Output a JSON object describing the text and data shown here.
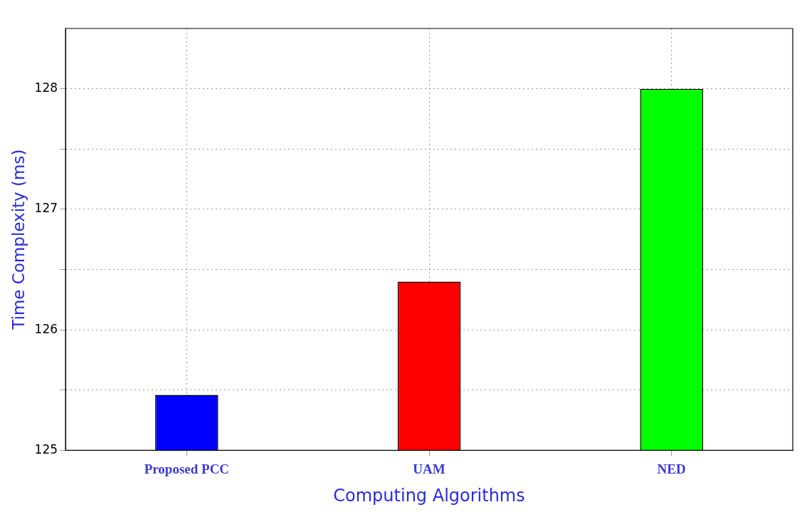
{
  "chart_data": {
    "type": "bar",
    "xlabel": "Computing Algorithms",
    "ylabel": "Time Complexity (ms)",
    "categories": [
      "Proposed PCC",
      "UAM",
      "NED"
    ],
    "values": [
      125.46,
      126.4,
      128.0
    ],
    "colors": [
      "#0000ff",
      "#ff0000",
      "#00ff00"
    ],
    "ylim": [
      125,
      128.5
    ],
    "yticks": [
      125,
      {
        "value": 125.5,
        "label": null
      },
      126,
      {
        "value": 126.5,
        "label": null
      },
      127,
      {
        "value": 127.5,
        "label": null
      },
      128
    ],
    "grid": true
  }
}
